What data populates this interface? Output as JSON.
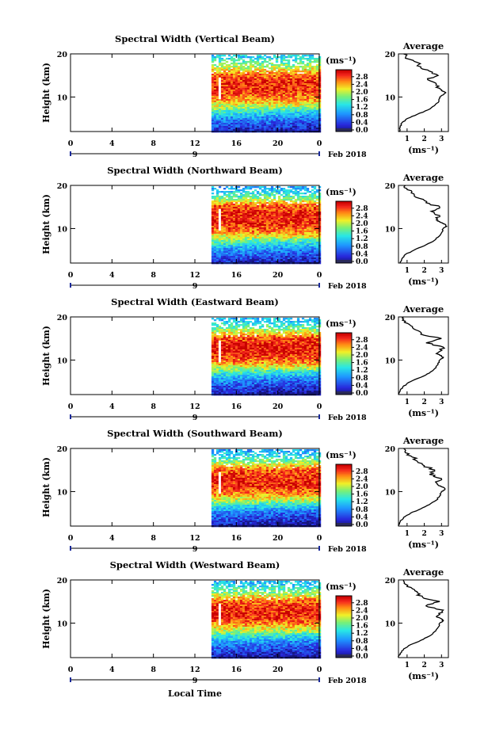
{
  "figure": {
    "xlabel": "Local Time",
    "date_label": "Feb 2018",
    "day_number": "9",
    "ylabel": "Height (km)",
    "colorbar_units": "(ms⁻¹)",
    "avg_title": "Average",
    "avg_xlabel": "(ms⁻¹)"
  },
  "chart_data": [
    {
      "type": "heatmap",
      "title": "Spectral Width (Vertical Beam)",
      "xlabel": "Local Time",
      "ylabel": "Height (km)",
      "xlim": [
        0,
        24
      ],
      "ylim": [
        2,
        20
      ],
      "xticks": [
        "0",
        "4",
        "8",
        "12",
        "16",
        "20",
        "0"
      ],
      "yticks": [
        "20",
        "10"
      ],
      "data_start_hour": 13.6,
      "colorbar_label": "(ms⁻¹)",
      "colorbar_ticks": [
        "2.8",
        "2.4",
        "2.0",
        "1.6",
        "1.2",
        "0.8",
        "0.4",
        "0.0"
      ],
      "colorbar_range": [
        0,
        3.0
      ],
      "profile_height_km": [
        2,
        3,
        4,
        5,
        6,
        7,
        8,
        9,
        10,
        11,
        12,
        13,
        14,
        15,
        16,
        17,
        18,
        19,
        20
      ],
      "profile_height_rows": [
        [
          3.5,
          0.6
        ],
        [
          5.5,
          1.0
        ],
        [
          7.5,
          1.8
        ],
        [
          9.5,
          2.4
        ],
        [
          11.5,
          2.7
        ],
        [
          13.5,
          2.8
        ],
        [
          15.5,
          2.5
        ],
        [
          17.5,
          1.8
        ],
        [
          19.5,
          1.2
        ]
      ],
      "average": {
        "title": "Average",
        "xlabel": "(ms⁻¹)",
        "xticks": [
          "1",
          "2",
          "3"
        ],
        "xlim": [
          0.5,
          3.4
        ],
        "yticks": [
          "20",
          "10"
        ],
        "ylim": [
          2,
          20
        ],
        "height_km": [
          2,
          3,
          4,
          5,
          6,
          7,
          8,
          9,
          10,
          10.5,
          11,
          11.5,
          12,
          13,
          14,
          15,
          16,
          17,
          18,
          19,
          20
        ],
        "width": [
          0.55,
          0.6,
          0.7,
          1.0,
          1.6,
          2.2,
          2.6,
          2.85,
          2.9,
          3.1,
          3.25,
          3.0,
          2.9,
          2.7,
          2.2,
          2.8,
          2.3,
          1.8,
          1.6,
          0.9,
          0.8
        ]
      }
    },
    {
      "type": "heatmap",
      "title": "Spectral Width (Northward Beam)",
      "xlabel": "Local Time",
      "ylabel": "Height (km)",
      "xlim": [
        0,
        24
      ],
      "ylim": [
        2,
        20
      ],
      "xticks": [
        "0",
        "4",
        "8",
        "12",
        "16",
        "20",
        "0"
      ],
      "yticks": [
        "20",
        "10"
      ],
      "data_start_hour": 13.6,
      "colorbar_label": "(ms⁻¹)",
      "colorbar_ticks": [
        "2.8",
        "2.4",
        "2.0",
        "1.6",
        "1.2",
        "0.8",
        "0.4",
        "0.0"
      ],
      "colorbar_range": [
        0,
        3.0
      ],
      "profile_height_rows": [
        [
          3.5,
          0.6
        ],
        [
          5.5,
          1.0
        ],
        [
          7.5,
          1.8
        ],
        [
          9.5,
          2.5
        ],
        [
          11.5,
          2.8
        ],
        [
          13.5,
          2.8
        ],
        [
          15.5,
          2.6
        ],
        [
          17.5,
          1.6
        ],
        [
          19.5,
          1.0
        ]
      ],
      "average": {
        "title": "Average",
        "xlabel": "(ms⁻¹)",
        "xticks": [
          "1",
          "2",
          "3"
        ],
        "xlim": [
          0.5,
          3.4
        ],
        "yticks": [
          "20",
          "10"
        ],
        "ylim": [
          2,
          20
        ],
        "height_km": [
          2,
          3,
          4,
          5,
          6,
          7,
          8,
          9,
          10,
          10.5,
          11,
          11.5,
          12,
          13,
          14,
          15,
          16,
          17,
          18,
          19,
          20
        ],
        "width": [
          0.6,
          0.7,
          0.9,
          1.4,
          2.0,
          2.5,
          2.8,
          3.0,
          3.1,
          3.3,
          3.2,
          2.9,
          2.7,
          2.9,
          2.4,
          2.9,
          2.1,
          1.7,
          1.4,
          1.0,
          0.9
        ]
      }
    },
    {
      "type": "heatmap",
      "title": "Spectral Width (Eastward Beam)",
      "xlabel": "Local Time",
      "ylabel": "Height (km)",
      "xlim": [
        0,
        24
      ],
      "ylim": [
        2,
        20
      ],
      "xticks": [
        "0",
        "4",
        "8",
        "12",
        "16",
        "20",
        "0"
      ],
      "yticks": [
        "20",
        "10"
      ],
      "data_start_hour": 13.6,
      "colorbar_label": "(ms⁻¹)",
      "colorbar_ticks": [
        "2.8",
        "2.4",
        "2.0",
        "1.6",
        "1.2",
        "0.8",
        "0.4",
        "0.0"
      ],
      "colorbar_range": [
        0,
        3.0
      ],
      "profile_height_rows": [
        [
          3.5,
          0.5
        ],
        [
          5.5,
          0.9
        ],
        [
          7.5,
          1.6
        ],
        [
          9.5,
          2.4
        ],
        [
          11.5,
          2.8
        ],
        [
          13.5,
          2.9
        ],
        [
          15.5,
          2.6
        ],
        [
          17.5,
          1.7
        ],
        [
          19.5,
          1.1
        ]
      ],
      "average": {
        "title": "Average",
        "xlabel": "(ms⁻¹)",
        "xticks": [
          "1",
          "2",
          "3"
        ],
        "xlim": [
          0.5,
          3.4
        ],
        "yticks": [
          "20",
          "10"
        ],
        "ylim": [
          2,
          20
        ],
        "height_km": [
          2,
          3,
          4,
          5,
          6,
          7,
          8,
          9,
          10,
          10.5,
          11,
          11.5,
          12,
          13,
          14,
          15,
          16,
          17,
          18,
          19,
          20
        ],
        "width": [
          0.5,
          0.6,
          0.8,
          1.2,
          1.8,
          2.3,
          2.6,
          2.8,
          2.9,
          3.1,
          3.0,
          2.7,
          2.9,
          3.1,
          2.1,
          3.0,
          1.8,
          1.5,
          1.2,
          0.9,
          0.8
        ]
      }
    },
    {
      "type": "heatmap",
      "title": "Spectral Width (Southward Beam)",
      "xlabel": "Local Time",
      "ylabel": "Height (km)",
      "xlim": [
        0,
        24
      ],
      "ylim": [
        2,
        20
      ],
      "xticks": [
        "0",
        "4",
        "8",
        "12",
        "16",
        "20",
        "0"
      ],
      "yticks": [
        "20",
        "10"
      ],
      "data_start_hour": 13.6,
      "colorbar_label": "(ms⁻¹)",
      "colorbar_ticks": [
        "2.8",
        "2.4",
        "2.0",
        "1.6",
        "1.2",
        "0.8",
        "0.4",
        "0.0"
      ],
      "colorbar_range": [
        0,
        3.0
      ],
      "profile_height_rows": [
        [
          3.5,
          0.5
        ],
        [
          5.5,
          0.9
        ],
        [
          7.5,
          1.7
        ],
        [
          9.5,
          2.4
        ],
        [
          11.5,
          2.8
        ],
        [
          13.5,
          2.8
        ],
        [
          15.5,
          2.5
        ],
        [
          17.5,
          1.6
        ],
        [
          19.5,
          1.0
        ]
      ],
      "average": {
        "title": "Average",
        "xlabel": "(ms⁻¹)",
        "xticks": [
          "1",
          "2",
          "3"
        ],
        "xlim": [
          0.5,
          3.4
        ],
        "yticks": [
          "20",
          "10"
        ],
        "ylim": [
          2,
          20
        ],
        "height_km": [
          2,
          3,
          4,
          5,
          6,
          7,
          8,
          9,
          10,
          10.5,
          11,
          11.5,
          12,
          13,
          14,
          15,
          16,
          17,
          18,
          19,
          20
        ],
        "width": [
          0.5,
          0.6,
          0.8,
          1.2,
          1.8,
          2.3,
          2.7,
          2.9,
          3.0,
          3.2,
          3.1,
          2.8,
          2.7,
          3.0,
          2.3,
          2.6,
          2.0,
          1.6,
          1.3,
          0.9,
          0.8
        ]
      }
    },
    {
      "type": "heatmap",
      "title": "Spectral Width (Westward Beam)",
      "xlabel": "Local Time",
      "ylabel": "Height (km)",
      "xlim": [
        0,
        24
      ],
      "ylim": [
        2,
        20
      ],
      "xticks": [
        "0",
        "4",
        "8",
        "12",
        "16",
        "20",
        "0"
      ],
      "yticks": [
        "20",
        "10"
      ],
      "data_start_hour": 13.6,
      "colorbar_label": "(ms⁻¹)",
      "colorbar_ticks": [
        "2.8",
        "2.4",
        "2.0",
        "1.6",
        "1.2",
        "0.8",
        "0.4",
        "0.0"
      ],
      "colorbar_range": [
        0,
        3.0
      ],
      "profile_height_rows": [
        [
          3.5,
          0.5
        ],
        [
          5.5,
          0.9
        ],
        [
          7.5,
          1.6
        ],
        [
          9.5,
          2.3
        ],
        [
          11.5,
          2.8
        ],
        [
          13.5,
          2.8
        ],
        [
          15.5,
          2.5
        ],
        [
          17.5,
          1.7
        ],
        [
          19.5,
          1.1
        ]
      ],
      "average": {
        "title": "Average",
        "xlabel": "(ms⁻¹)",
        "xticks": [
          "1",
          "2",
          "3"
        ],
        "xlim": [
          0.5,
          3.4
        ],
        "yticks": [
          "20",
          "10"
        ],
        "ylim": [
          2,
          20
        ],
        "height_km": [
          2,
          3,
          4,
          5,
          6,
          7,
          8,
          9,
          10,
          10.5,
          11,
          11.5,
          12,
          13,
          14,
          15,
          16,
          17,
          18,
          19,
          20
        ],
        "width": [
          0.5,
          0.6,
          0.8,
          1.2,
          1.8,
          2.3,
          2.6,
          2.8,
          2.9,
          3.1,
          3.0,
          2.7,
          2.9,
          3.1,
          2.1,
          2.9,
          1.9,
          1.6,
          1.3,
          0.9,
          0.8
        ]
      }
    }
  ]
}
